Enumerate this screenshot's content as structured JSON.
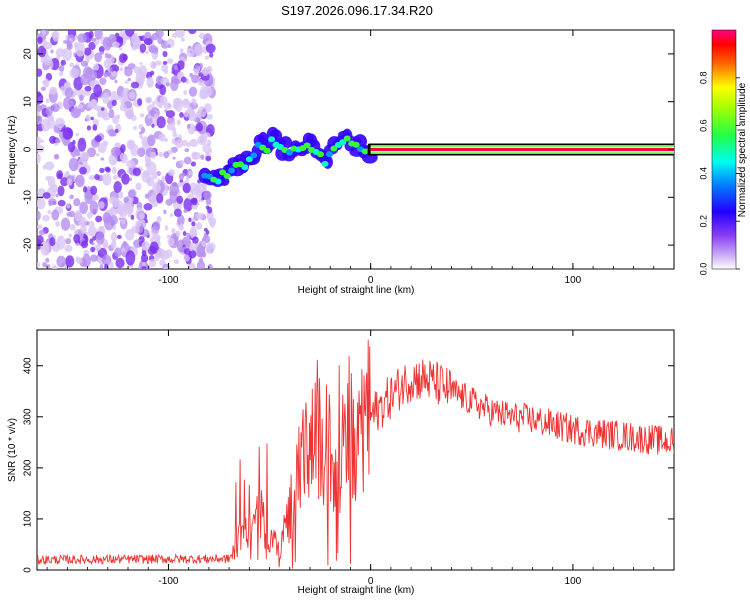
{
  "title": "S197.2026.096.17.34.R20",
  "chart_data": [
    {
      "type": "heatmap",
      "name": "spectrogram",
      "xlabel": "Height of straight line (km)",
      "ylabel": "Frequency (Hz)",
      "xlim": [
        -165,
        150
      ],
      "ylim": [
        -25,
        25
      ],
      "xticks": [
        -100,
        0,
        100
      ],
      "yticks": [
        -20,
        -10,
        0,
        10,
        20
      ],
      "colorbar": {
        "label": "Normalized spectral amplitude",
        "range": [
          0,
          1
        ],
        "ticks": [
          "0.0",
          "0.2",
          "0.4",
          "0.6",
          "0.8"
        ]
      },
      "trace": {
        "x": [
          -82,
          -75,
          -68,
          -62,
          -58,
          -55,
          -52,
          -48,
          -44,
          -40,
          -35,
          -30,
          -26,
          -22,
          -19,
          -16,
          -13,
          -10,
          -7,
          -4,
          -2,
          0,
          10,
          150
        ],
        "y": [
          -6,
          -6,
          -4,
          -3,
          -1,
          2,
          0,
          2,
          0,
          0,
          0,
          1,
          -1,
          -3,
          0,
          1,
          2,
          2,
          1,
          0,
          -1,
          0,
          0,
          0
        ]
      },
      "noise_region_x": [
        -165,
        -78
      ],
      "colors": [
        "#d9c6f5",
        "#b58ef0",
        "#7a2ef0",
        "#3300ff",
        "#0099ff",
        "#00ffcc",
        "#33ff33",
        "#ffff00",
        "#ff6600",
        "#ff0044",
        "#ff33cc"
      ]
    },
    {
      "type": "line",
      "name": "snr",
      "xlabel": "Height of straight line (km)",
      "ylabel": "SNR (10 * v/v)",
      "xlim": [
        -165,
        150
      ],
      "ylim": [
        0,
        470
      ],
      "xticks": [
        -100,
        0,
        100
      ],
      "yticks": [
        0,
        100,
        200,
        300,
        400
      ],
      "color": "#ee3333",
      "envelope": {
        "x": [
          -165,
          -70,
          -65,
          -60,
          -55,
          -50,
          -45,
          -40,
          -35,
          -30,
          -25,
          -20,
          -15,
          -10,
          -5,
          0,
          5,
          10,
          15,
          20,
          25,
          30,
          40,
          50,
          60,
          70,
          80,
          90,
          100,
          110,
          120,
          130,
          140,
          150
        ],
        "y": [
          20,
          22,
          60,
          80,
          100,
          70,
          40,
          120,
          190,
          230,
          250,
          230,
          220,
          250,
          270,
          300,
          320,
          340,
          360,
          375,
          375,
          370,
          350,
          330,
          310,
          300,
          295,
          285,
          275,
          270,
          265,
          260,
          255,
          250
        ]
      }
    }
  ]
}
